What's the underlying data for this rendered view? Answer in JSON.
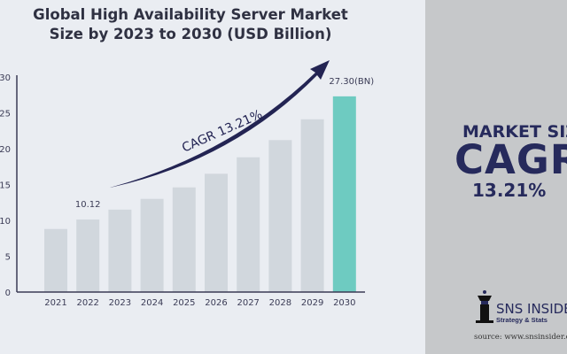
{
  "title_line1": "Global High Availability Server Market",
  "title_line2": "Size by 2023 to 2030 (USD Billion)",
  "chart_data": {
    "type": "bar",
    "title": "Global High Availability Server Market Size by 2023 to 2030 (USD Billion)",
    "categories": [
      "2021",
      "2022",
      "2023",
      "2024",
      "2025",
      "2026",
      "2027",
      "2028",
      "2029",
      "2030"
    ],
    "values": [
      8.8,
      10.12,
      11.5,
      13.0,
      14.6,
      16.5,
      18.8,
      21.2,
      24.1,
      27.3
    ],
    "yticks": [
      0,
      5,
      10,
      15,
      20,
      25,
      30
    ],
    "ylim": [
      0,
      30
    ],
    "xlabel": "",
    "ylabel": "",
    "data_labels": {
      "1": "10.12",
      "9": "27.30(BN)"
    },
    "annotation": "CAGR 13.21%",
    "colors": {
      "bar": "#d1d7dd",
      "highlight": "#6ecbc1",
      "arrow": "#232453",
      "axis": "#3a3b55"
    }
  },
  "side_panel": {
    "line1": "MARKET SIZE",
    "line2": "CAGR",
    "line3": "13.21%",
    "brand": "SNS INSIDER",
    "tagline": "Strategy & Stats",
    "source": "source: www.snsinsider.com"
  }
}
